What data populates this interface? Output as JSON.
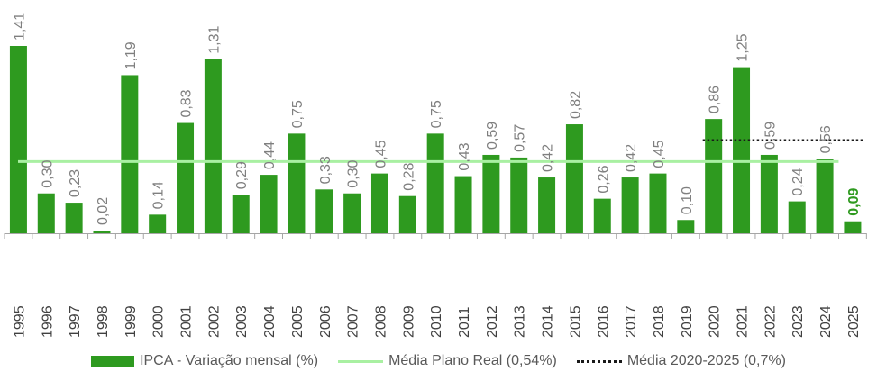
{
  "chart_data": {
    "type": "bar",
    "title": "",
    "xlabel": "",
    "ylabel": "",
    "ylim": [
      0,
      1.5
    ],
    "grid": false,
    "categories": [
      "1995",
      "1996",
      "1997",
      "1998",
      "1999",
      "2000",
      "2001",
      "2002",
      "2003",
      "2004",
      "2005",
      "2006",
      "2007",
      "2008",
      "2009",
      "2010",
      "2011",
      "2012",
      "2013",
      "2014",
      "2015",
      "2016",
      "2017",
      "2018",
      "2019",
      "2020",
      "2021",
      "2022",
      "2023",
      "2024",
      "2025"
    ],
    "values": [
      1.41,
      0.3,
      0.23,
      0.02,
      1.19,
      0.14,
      0.83,
      1.31,
      0.29,
      0.44,
      0.75,
      0.33,
      0.3,
      0.45,
      0.28,
      0.75,
      0.43,
      0.59,
      0.57,
      0.42,
      0.82,
      0.26,
      0.42,
      0.45,
      0.1,
      0.86,
      1.25,
      0.59,
      0.24,
      0.56,
      0.09
    ],
    "labels": [
      "1,41",
      "0,30",
      "0,23",
      "0,02",
      "1,19",
      "0,14",
      "0,83",
      "1,31",
      "0,29",
      "0,44",
      "0,75",
      "0,33",
      "0,30",
      "0,45",
      "0,28",
      "0,75",
      "0,43",
      "0,59",
      "0,57",
      "0,42",
      "0,82",
      "0,26",
      "0,42",
      "0,45",
      "0,10",
      "0,86",
      "1,25",
      "0,59",
      "0,24",
      "0,56",
      "0,09"
    ],
    "reference_lines": [
      {
        "name": "Média Plano Real (0,54%)",
        "value": 0.54,
        "from": "1995",
        "to": "2025",
        "style": "solid"
      },
      {
        "name": "Média 2020-2025 (0,7%)",
        "value": 0.7,
        "from": "2020",
        "to": "2025",
        "style": "dotted"
      }
    ],
    "legend": {
      "position": "bottom",
      "entries": [
        {
          "name": "IPCA - Variação mensal (%)",
          "kind": "bar"
        },
        {
          "name": "Média Plano Real (0,54%)",
          "kind": "line"
        },
        {
          "name": "Média 2020-2025 (0,7%)",
          "kind": "dotted"
        }
      ]
    }
  },
  "colors": {
    "bar": "#2e9a1f",
    "last_label": "#2e9a1f",
    "avg_line": "#a9f0a2",
    "recent_avg_line": "#1a1a1a",
    "axis": "#a6a6a6"
  }
}
